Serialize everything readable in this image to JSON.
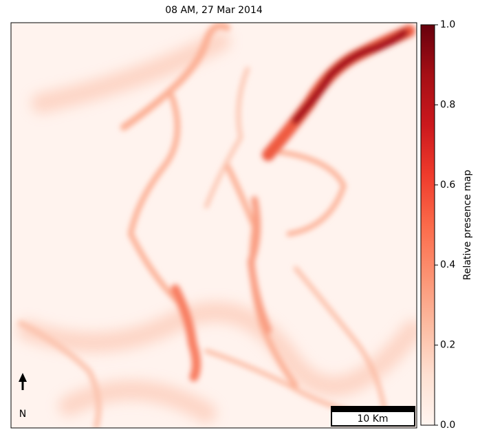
{
  "chart_data": {
    "type": "heatmap",
    "title": "08 AM, 27 Mar 2014",
    "colorbar_label": "Relative presence map",
    "clim": [
      0,
      1
    ],
    "cticks": [
      {
        "value": 0,
        "label": "0.0"
      },
      {
        "value": 0.2,
        "label": "0.2"
      },
      {
        "value": 0.4,
        "label": "0.4"
      },
      {
        "value": 0.6,
        "label": "0.6"
      },
      {
        "value": 0.8,
        "label": "0.8"
      },
      {
        "value": 1,
        "label": "1.0"
      }
    ],
    "colors": [
      "#fff5f0",
      "#fee0d2",
      "#fcbba1",
      "#fc9272",
      "#fb6a4a",
      "#ef3b2c",
      "#cb181d",
      "#a50f15",
      "#67000d"
    ],
    "scale_bar": "10 Km",
    "north_label": "N"
  }
}
